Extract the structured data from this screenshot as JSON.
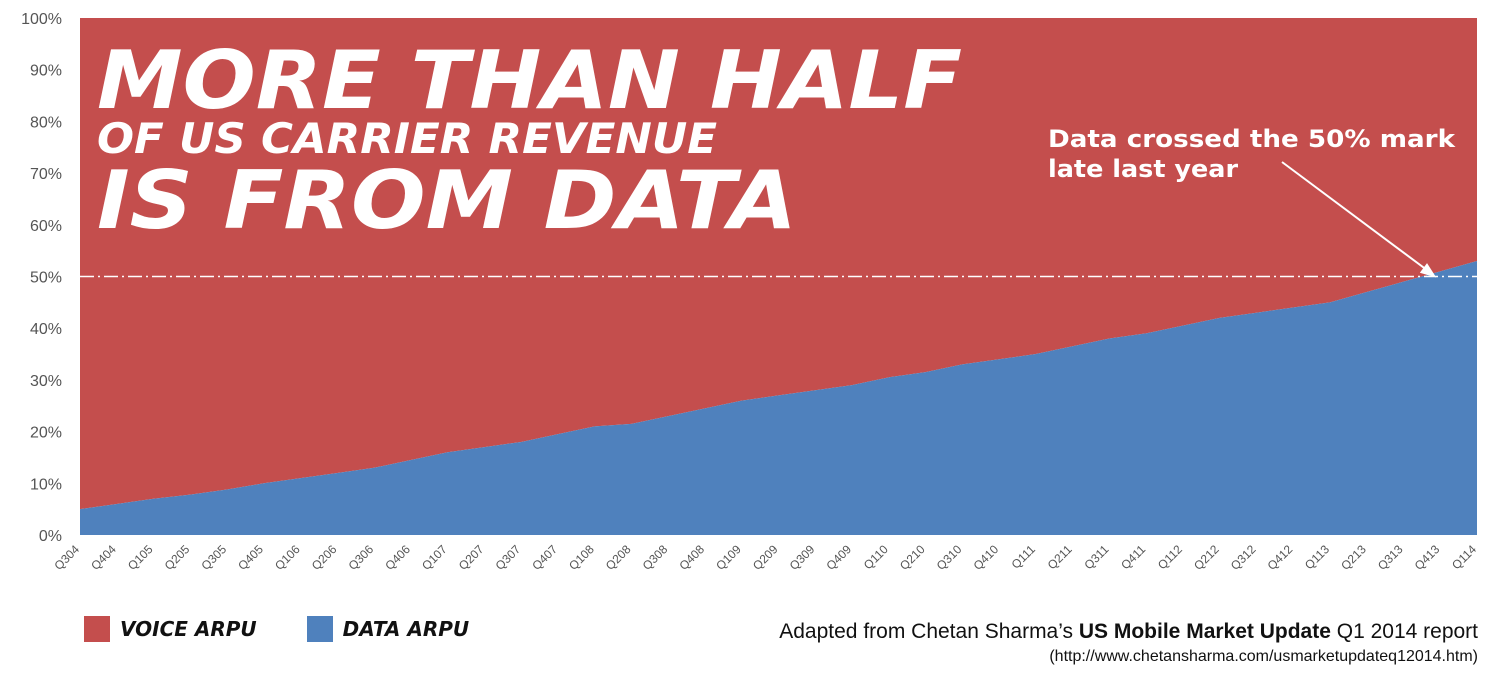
{
  "chart_data": {
    "type": "area",
    "stacked": "percent",
    "title_lines": [
      "MORE THAN HALF",
      "OF US CARRIER REVENUE",
      "IS FROM DATA"
    ],
    "categories": [
      "Q304",
      "Q404",
      "Q105",
      "Q205",
      "Q305",
      "Q405",
      "Q106",
      "Q206",
      "Q306",
      "Q406",
      "Q107",
      "Q207",
      "Q307",
      "Q407",
      "Q108",
      "Q208",
      "Q308",
      "Q408",
      "Q109",
      "Q209",
      "Q309",
      "Q409",
      "Q110",
      "Q210",
      "Q310",
      "Q410",
      "Q111",
      "Q211",
      "Q311",
      "Q411",
      "Q112",
      "Q212",
      "Q312",
      "Q412",
      "Q113",
      "Q213",
      "Q313",
      "Q413",
      "Q114"
    ],
    "series": [
      {
        "name": "VOICE ARPU",
        "color": "#c44e4d",
        "values": [
          95,
          94,
          93,
          92.2,
          91.2,
          90,
          89,
          88,
          87,
          85.5,
          84,
          83,
          82,
          80.5,
          79,
          78.5,
          77,
          75.5,
          74,
          73,
          72,
          71,
          69.5,
          68.5,
          67,
          66,
          65,
          63.5,
          62,
          61,
          59.5,
          58,
          57,
          56,
          55,
          53,
          51,
          49,
          47
        ]
      },
      {
        "name": "DATA ARPU",
        "color": "#4f81bd",
        "values": [
          5,
          6,
          7,
          7.8,
          8.8,
          10,
          11,
          12,
          13,
          14.5,
          16,
          17,
          18,
          19.5,
          21,
          21.5,
          23,
          24.5,
          26,
          27,
          28,
          29,
          30.5,
          31.5,
          33,
          34,
          35,
          36.5,
          38,
          39,
          40.5,
          42,
          43,
          44,
          45,
          47,
          49,
          51,
          53
        ]
      }
    ],
    "ylim": [
      0,
      100
    ],
    "yticks": [
      "0%",
      "10%",
      "20%",
      "30%",
      "40%",
      "50%",
      "60%",
      "70%",
      "80%",
      "90%",
      "100%"
    ],
    "reference_line": {
      "value": 50,
      "style": "dash-dot",
      "color": "#ffffff"
    },
    "annotation": {
      "lines": [
        "Data crossed the 50% mark",
        "late last year"
      ],
      "points_to": "Q413",
      "value": 50
    },
    "grid": false,
    "legend_position": "bottom-left"
  },
  "legend": {
    "voice_label": "VOICE ARPU",
    "data_label": "DATA ARPU"
  },
  "source": {
    "prefix": "Adapted from Chetan Sharma’s ",
    "bold": "US Mobile Market Update",
    "suffix": " Q1 2014 report",
    "url": "(http://www.chetansharma.com/usmarketupdateq12014.htm)"
  }
}
